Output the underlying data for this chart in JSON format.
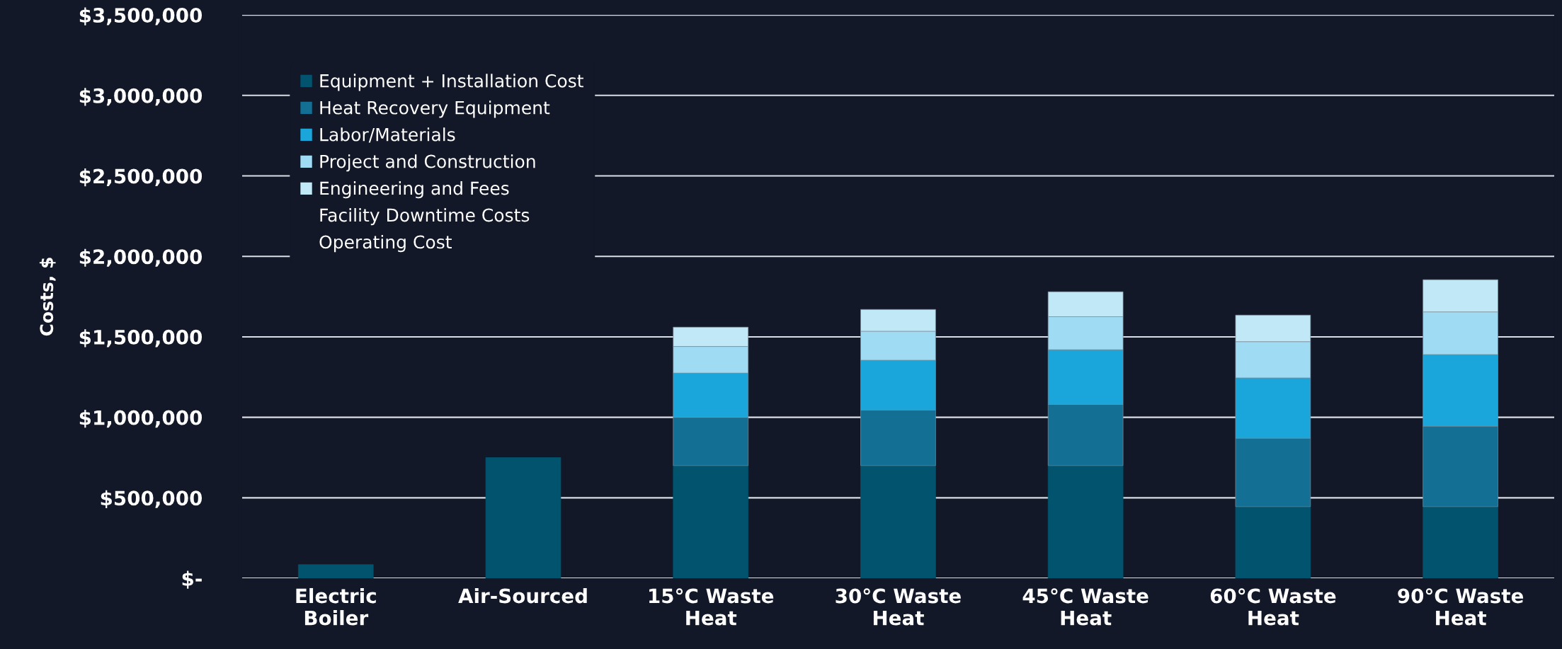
{
  "chart_data": {
    "type": "bar",
    "stacked": true,
    "ylabel": "Costs, $",
    "categories": [
      "Electric Boiler",
      "Air-Sourced",
      "15°C Waste Heat",
      "30°C Waste Heat",
      "45°C Waste Heat",
      "60°C Waste Heat",
      "90°C Waste Heat"
    ],
    "series": [
      {
        "name": "Equipment + Installation Cost",
        "color": "#02546e",
        "values": [
          85000,
          750000,
          700000,
          700000,
          700000,
          445000,
          445000
        ]
      },
      {
        "name": "Heat Recovery Equipment",
        "color": "#136f93",
        "values": [
          null,
          null,
          300000,
          345000,
          380000,
          425000,
          500000
        ]
      },
      {
        "name": "Labor/Materials",
        "color": "#1ba6db",
        "values": [
          null,
          null,
          275000,
          310000,
          340000,
          375000,
          445000
        ]
      },
      {
        "name": "Project and Construction",
        "color": "#9fdcf4",
        "values": [
          null,
          null,
          165000,
          180000,
          205000,
          225000,
          265000
        ]
      },
      {
        "name": "Engineering and Fees",
        "color": "#c0e8f6",
        "values": [
          null,
          null,
          120000,
          135000,
          155000,
          165000,
          200000
        ]
      },
      {
        "name": "Facility Downtime Costs",
        "values": [
          null,
          null,
          null,
          null,
          null,
          null,
          null
        ]
      },
      {
        "name": "Operating Cost",
        "values": [
          null,
          null,
          null,
          null,
          null,
          null,
          null
        ]
      }
    ],
    "ylim": [
      0,
      3500000
    ],
    "yticks": [
      {
        "value": 0,
        "label": "$-"
      },
      {
        "value": 500000,
        "label": "$500,000"
      },
      {
        "value": 1000000,
        "label": "$1,000,000"
      },
      {
        "value": 1500000,
        "label": "$1,500,000"
      },
      {
        "value": 2000000,
        "label": "$2,000,000"
      },
      {
        "value": 2500000,
        "label": "$2,500,000"
      },
      {
        "value": 3000000,
        "label": "$3,000,000"
      },
      {
        "value": 3500000,
        "label": "$3,500,000"
      }
    ],
    "grid": "y",
    "legend": "upper left"
  }
}
